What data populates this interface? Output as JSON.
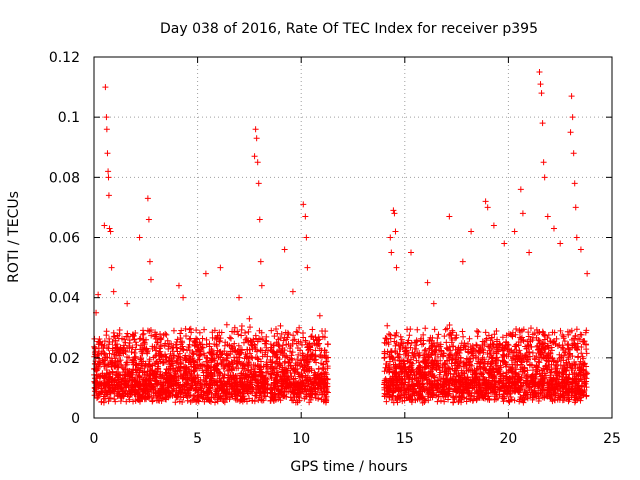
{
  "chart_data": {
    "type": "scatter",
    "title": "Day 038 of 2016, Rate Of TEC Index for receiver p395",
    "xlabel": "GPS time / hours",
    "ylabel": "ROTI / TECUs",
    "xlim": [
      0,
      25
    ],
    "ylim": [
      0,
      0.12
    ],
    "x_ticks": [
      0,
      5,
      10,
      15,
      20,
      25
    ],
    "x_tick_labels": [
      "0",
      "5",
      "10",
      "15",
      "20",
      "25"
    ],
    "y_ticks": [
      0,
      0.02,
      0.04,
      0.06,
      0.08,
      0.1,
      0.12
    ],
    "y_tick_labels": [
      "0",
      "0.02",
      "0.04",
      "0.06",
      "0.08",
      "0.1",
      "0.12"
    ],
    "grid": true,
    "marker": "+",
    "color": "#ff0000",
    "data_coverage_hours": [
      [
        0.0,
        8.4
      ],
      [
        8.5,
        11.3
      ],
      [
        14.0,
        23.8
      ]
    ],
    "typical_range": [
      0.005,
      0.04
    ],
    "series": [
      {
        "name": "ROTI",
        "points": [
          [
            0.05,
            0.018
          ],
          [
            0.1,
            0.035
          ],
          [
            0.2,
            0.041
          ],
          [
            0.3,
            0.025
          ],
          [
            0.5,
            0.064
          ],
          [
            0.55,
            0.11
          ],
          [
            0.6,
            0.1
          ],
          [
            0.62,
            0.096
          ],
          [
            0.65,
            0.088
          ],
          [
            0.68,
            0.082
          ],
          [
            0.7,
            0.08
          ],
          [
            0.72,
            0.074
          ],
          [
            0.75,
            0.063
          ],
          [
            0.8,
            0.062
          ],
          [
            0.85,
            0.05
          ],
          [
            0.95,
            0.042
          ],
          [
            1.6,
            0.038
          ],
          [
            2.2,
            0.06
          ],
          [
            2.6,
            0.073
          ],
          [
            2.65,
            0.066
          ],
          [
            2.7,
            0.052
          ],
          [
            2.75,
            0.046
          ],
          [
            4.1,
            0.044
          ],
          [
            4.3,
            0.04
          ],
          [
            5.4,
            0.048
          ],
          [
            6.1,
            0.05
          ],
          [
            7.0,
            0.04
          ],
          [
            7.5,
            0.033
          ],
          [
            7.75,
            0.087
          ],
          [
            7.8,
            0.096
          ],
          [
            7.85,
            0.093
          ],
          [
            7.9,
            0.085
          ],
          [
            7.95,
            0.078
          ],
          [
            8.0,
            0.066
          ],
          [
            8.05,
            0.052
          ],
          [
            8.1,
            0.044
          ],
          [
            9.2,
            0.056
          ],
          [
            9.6,
            0.042
          ],
          [
            9.9,
            0.03
          ],
          [
            10.1,
            0.071
          ],
          [
            10.2,
            0.067
          ],
          [
            10.25,
            0.06
          ],
          [
            10.3,
            0.05
          ],
          [
            10.9,
            0.034
          ],
          [
            14.3,
            0.06
          ],
          [
            14.35,
            0.055
          ],
          [
            14.45,
            0.069
          ],
          [
            14.5,
            0.068
          ],
          [
            14.55,
            0.062
          ],
          [
            14.6,
            0.05
          ],
          [
            15.3,
            0.055
          ],
          [
            16.1,
            0.045
          ],
          [
            16.4,
            0.038
          ],
          [
            17.15,
            0.067
          ],
          [
            17.8,
            0.052
          ],
          [
            18.2,
            0.062
          ],
          [
            18.9,
            0.072
          ],
          [
            19.0,
            0.07
          ],
          [
            19.3,
            0.064
          ],
          [
            19.8,
            0.058
          ],
          [
            20.3,
            0.062
          ],
          [
            20.6,
            0.076
          ],
          [
            20.7,
            0.068
          ],
          [
            21.0,
            0.055
          ],
          [
            21.5,
            0.115
          ],
          [
            21.55,
            0.111
          ],
          [
            21.6,
            0.108
          ],
          [
            21.65,
            0.098
          ],
          [
            21.7,
            0.085
          ],
          [
            21.75,
            0.08
          ],
          [
            21.9,
            0.067
          ],
          [
            22.2,
            0.063
          ],
          [
            22.5,
            0.058
          ],
          [
            23.0,
            0.095
          ],
          [
            23.05,
            0.107
          ],
          [
            23.1,
            0.1
          ],
          [
            23.15,
            0.088
          ],
          [
            23.2,
            0.078
          ],
          [
            23.25,
            0.07
          ],
          [
            23.3,
            0.06
          ],
          [
            23.5,
            0.056
          ],
          [
            23.8,
            0.048
          ]
        ]
      }
    ]
  }
}
